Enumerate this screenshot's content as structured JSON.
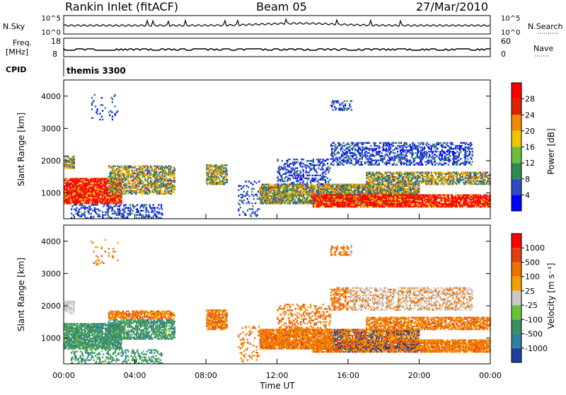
{
  "header": {
    "title": "Rankin Inlet (fitACF)",
    "beam": "Beam 05",
    "date": "27/Mar/2010"
  },
  "top_panels": {
    "nsky_label": "N.Sky",
    "nsky_ticks": [
      "10^5",
      "10^0"
    ],
    "nsearch_label": "N.Search",
    "nsearch_ticks": [
      "10^5",
      "10^0"
    ],
    "freq_label_1": "Freq.",
    "freq_label_2": "[MHz]",
    "freq_ticks": [
      "18",
      "8"
    ],
    "nave_label": "Nave",
    "nave_ticks": [
      "60",
      "0"
    ],
    "cpid_label": "CPID",
    "cpid_value": "themis 3300"
  },
  "chart_data": [
    {
      "type": "heatmap",
      "name": "power",
      "ylabel": "Slant Range [km]",
      "yticks": [
        "4000",
        "3000",
        "2000",
        "1000"
      ],
      "ylim": [
        200,
        4500
      ],
      "colorbar_label": "Power [dB]",
      "colorbar_ticks": [
        "28",
        "24",
        "20",
        "16",
        "12",
        "8",
        "4"
      ],
      "colors": [
        "#0000ff",
        "#2a4dbf",
        "#2f8a4f",
        "#6cbf3a",
        "#f2c400",
        "#f08a00",
        "#e02000",
        "#ff0000"
      ]
    },
    {
      "type": "heatmap",
      "name": "velocity",
      "ylabel": "Slant Range [km]",
      "yticks": [
        "4000",
        "3000",
        "2000",
        "1000"
      ],
      "ylim": [
        200,
        4500
      ],
      "colorbar_label": "Velocity [m s⁻¹]",
      "colorbar_ticks": [
        "1000",
        "500",
        "100",
        "25",
        "-25",
        "-100",
        "-500",
        "-1000"
      ],
      "colors": [
        "#1f3fa0",
        "#2f7fa0",
        "#3a8f60",
        "#66c23a",
        "#c8c8c8",
        "#f0a000",
        "#f07000",
        "#e04010",
        "#ff0000"
      ]
    }
  ],
  "time_axis": {
    "ticks": [
      "00:00",
      "04:00",
      "08:00",
      "12:00",
      "16:00",
      "20:00",
      "00:00"
    ],
    "label": "Time UT"
  }
}
